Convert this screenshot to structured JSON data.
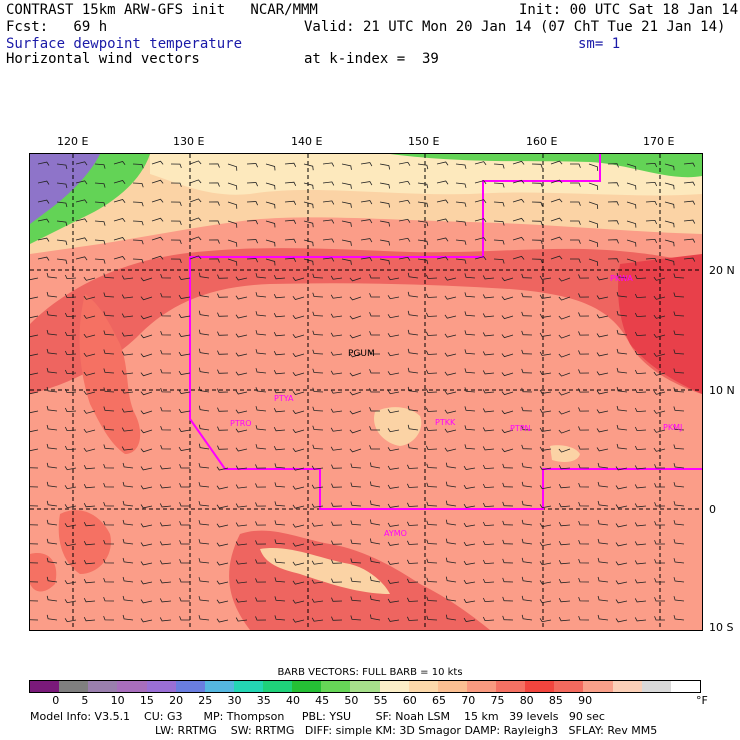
{
  "header": {
    "line1_left": "CONTRAST 15km ARW-GFS init   NCAR/MMM",
    "line1_right": "Init: 00 UTC Sat 18 Jan 14",
    "fcst": "Fcst:   69 h",
    "valid": "Valid: 21 UTC Mon 20 Jan 14 (07 ChT Tue 21 Jan 14)",
    "field": "Surface dewpoint temperature",
    "sm": "sm= 1",
    "vectors": "Horizontal wind vectors",
    "kindex": "at k-index =  39"
  },
  "map": {
    "lon_labels": [
      "120 E",
      "130 E",
      "140 E",
      "150 E",
      "160 E",
      "170 E"
    ],
    "lat_labels": [
      "20 N",
      "10 N",
      "0",
      "10 S"
    ],
    "stations": [
      "PGUM",
      "PTYA",
      "PTRO",
      "PTPN",
      "PTKK",
      "PKMJ",
      "PKWA",
      "AYMO"
    ],
    "colors": {
      "land_dark": "#e8404a",
      "land_mid": "#ee6560",
      "land_light": "#f98e82",
      "ocean_salmon": "#fb9d88",
      "tan": "#fbd3a5",
      "cream": "#fde9bd",
      "green": "#63d356",
      "purple": "#8e74c9",
      "fir_line": "#ff00ff"
    }
  },
  "legend": {
    "title": "BARB VECTORS:  FULL BARB = 10 kts",
    "ticks": [
      "0",
      "5",
      "10",
      "15",
      "20",
      "25",
      "30",
      "35",
      "40",
      "45",
      "50",
      "55",
      "60",
      "65",
      "70",
      "75",
      "80",
      "85",
      "90"
    ],
    "unit": "°F",
    "colors": [
      "#7a1a7a",
      "#7f7f7f",
      "#9a7fae",
      "#a86ebd",
      "#9a6fd6",
      "#6a7ee0",
      "#55b7e0",
      "#24d6b4",
      "#1fd17a",
      "#25bf35",
      "#66d657",
      "#a6e08b",
      "#fbeec8",
      "#fcd9ab",
      "#fbbf92",
      "#f99a80",
      "#f57163",
      "#f2453e",
      "#f36a5e",
      "#f9a08a",
      "#fbd0b8",
      "#d9d9d9",
      "#ffffff"
    ]
  },
  "footer": {
    "line1": "Model Info: V3.5.1    CU: G3      MP: Thompson     PBL: YSU       SF: Noah LSM    15 km   39 levels   90 sec",
    "line2": "LW: RRTMG    SW: RRTMG   DIFF: simple KM: 3D Smagor DAMP: Rayleigh3   SFLAY: Rev MM5"
  }
}
